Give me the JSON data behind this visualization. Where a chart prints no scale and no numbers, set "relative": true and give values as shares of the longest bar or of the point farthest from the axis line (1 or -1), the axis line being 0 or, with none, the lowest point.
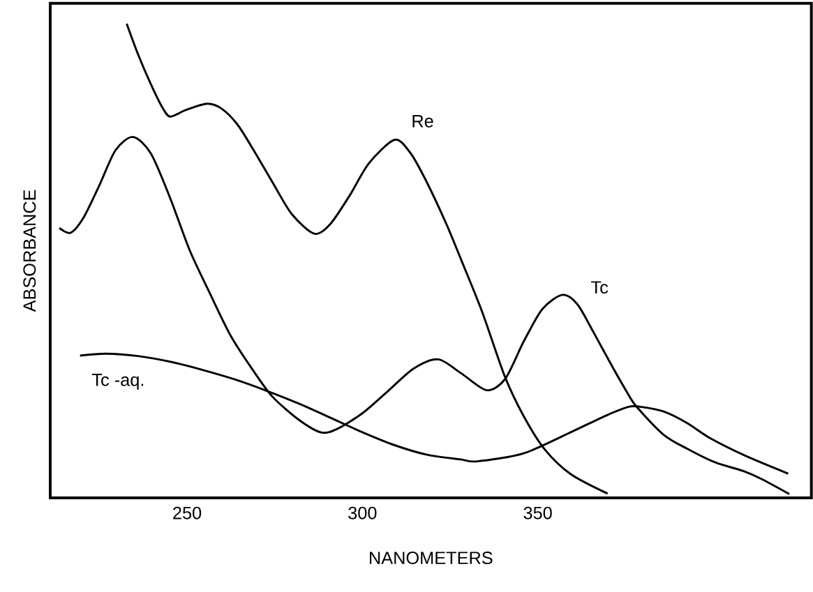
{
  "chart_data": {
    "type": "line",
    "relative": true,
    "xlabel": "NANOMETERS",
    "ylabel": "ABSORBANCE",
    "xlim": [
      211,
      428
    ],
    "xticks": [
      250,
      300,
      350
    ],
    "tick_labels": "x",
    "marker": "none",
    "line_style": "solid",
    "series": [
      {
        "name": "Re",
        "color": "#000000",
        "x": [
          232.8,
          236.0,
          239.7,
          242.9,
          245.2,
          249.7,
          255.7,
          259.8,
          264.4,
          269.0,
          274.4,
          279.9,
          286.3,
          290.9,
          296.4,
          301.9,
          309.2,
          313.8,
          318.4,
          323.9,
          328.1,
          334.1,
          340.6,
          346.0,
          352.0,
          359.4,
          369.9
        ],
        "values": [
          1.0,
          0.936,
          0.872,
          0.824,
          0.804,
          0.818,
          0.831,
          0.821,
          0.787,
          0.733,
          0.665,
          0.598,
          0.557,
          0.578,
          0.638,
          0.706,
          0.755,
          0.726,
          0.665,
          0.578,
          0.503,
          0.393,
          0.256,
          0.172,
          0.102,
          0.05,
          0.009
        ]
      },
      {
        "name": "Tc",
        "color": "#000000",
        "x": [
          213.6,
          216.8,
          220.5,
          225.0,
          229.6,
          234.6,
          239.7,
          245.2,
          250.7,
          256.2,
          262.5,
          269.0,
          274.4,
          281.8,
          288.2,
          292.7,
          300.1,
          307.4,
          314.7,
          321.6,
          328.1,
          335.4,
          340.7,
          346.0,
          351.3,
          357.0,
          361.3,
          365.9,
          371.3,
          375.9,
          378.2,
          385.9,
          392.5,
          400.5,
          408.4,
          413.7,
          421.7
        ],
        "values": [
          0.569,
          0.559,
          0.591,
          0.659,
          0.733,
          0.761,
          0.726,
          0.632,
          0.523,
          0.436,
          0.341,
          0.267,
          0.213,
          0.165,
          0.138,
          0.145,
          0.179,
          0.226,
          0.273,
          0.292,
          0.263,
          0.227,
          0.251,
          0.33,
          0.398,
          0.428,
          0.408,
          0.349,
          0.276,
          0.217,
          0.192,
          0.133,
          0.104,
          0.075,
          0.057,
          0.04,
          0.008
        ]
      },
      {
        "name": "Tc -aq.",
        "color": "#000000",
        "x": [
          219.5,
          226.9,
          236.0,
          245.2,
          254.3,
          263.5,
          272.6,
          281.8,
          290.9,
          300.1,
          309.2,
          318.4,
          328.1,
          332.7,
          346.0,
          359.3,
          369.3,
          375.9,
          379.2,
          385.9,
          392.5,
          399.1,
          409.1,
          421.4
        ],
        "values": [
          0.3,
          0.304,
          0.299,
          0.287,
          0.27,
          0.25,
          0.226,
          0.199,
          0.169,
          0.138,
          0.111,
          0.091,
          0.081,
          0.077,
          0.094,
          0.138,
          0.173,
          0.192,
          0.192,
          0.182,
          0.158,
          0.126,
          0.089,
          0.051
        ]
      }
    ]
  }
}
